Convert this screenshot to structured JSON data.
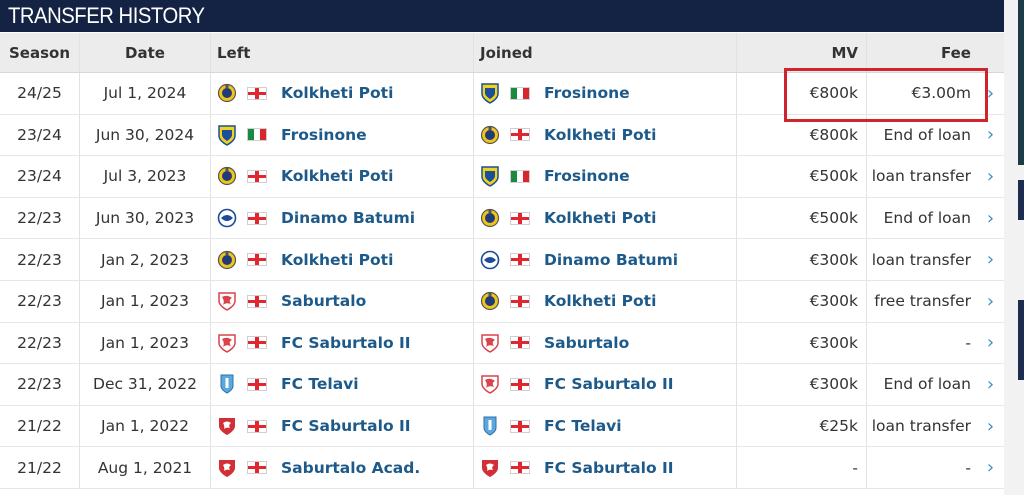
{
  "header": {
    "title": "TRANSFER HISTORY"
  },
  "columns": {
    "season": "Season",
    "date": "Date",
    "left": "Left",
    "joined": "Joined",
    "mv": "MV",
    "fee": "Fee"
  },
  "rows": [
    {
      "season": "24/25",
      "date": "Jul 1, 2024",
      "left": {
        "name": "Kolkheti Poti",
        "icon": "kolkheti-poti-crest-icon",
        "flag": "ge"
      },
      "joined": {
        "name": "Frosinone",
        "icon": "frosinone-crest-icon",
        "flag": "it"
      },
      "mv": "€800k",
      "fee": "€3.00m"
    },
    {
      "season": "23/24",
      "date": "Jun 30, 2024",
      "left": {
        "name": "Frosinone",
        "icon": "frosinone-crest-icon",
        "flag": "it"
      },
      "joined": {
        "name": "Kolkheti Poti",
        "icon": "kolkheti-poti-crest-icon",
        "flag": "ge"
      },
      "mv": "€800k",
      "fee": "End of loan"
    },
    {
      "season": "23/24",
      "date": "Jul 3, 2023",
      "left": {
        "name": "Kolkheti Poti",
        "icon": "kolkheti-poti-crest-icon",
        "flag": "ge"
      },
      "joined": {
        "name": "Frosinone",
        "icon": "frosinone-crest-icon",
        "flag": "it"
      },
      "mv": "€500k",
      "fee": "loan transfer"
    },
    {
      "season": "22/23",
      "date": "Jun 30, 2023",
      "left": {
        "name": "Dinamo Batumi",
        "icon": "dinamo-batumi-crest-icon",
        "flag": "ge"
      },
      "joined": {
        "name": "Kolkheti Poti",
        "icon": "kolkheti-poti-crest-icon",
        "flag": "ge"
      },
      "mv": "€500k",
      "fee": "End of loan"
    },
    {
      "season": "22/23",
      "date": "Jan 2, 2023",
      "left": {
        "name": "Kolkheti Poti",
        "icon": "kolkheti-poti-crest-icon",
        "flag": "ge"
      },
      "joined": {
        "name": "Dinamo Batumi",
        "icon": "dinamo-batumi-crest-icon",
        "flag": "ge"
      },
      "mv": "€300k",
      "fee": "loan transfer"
    },
    {
      "season": "22/23",
      "date": "Jan 1, 2023",
      "left": {
        "name": "Saburtalo",
        "icon": "saburtalo-crest-icon",
        "flag": "ge"
      },
      "joined": {
        "name": "Kolkheti Poti",
        "icon": "kolkheti-poti-crest-icon",
        "flag": "ge"
      },
      "mv": "€300k",
      "fee": "free transfer"
    },
    {
      "season": "22/23",
      "date": "Jan 1, 2023",
      "left": {
        "name": "FC Saburtalo II",
        "icon": "saburtalo-crest-icon",
        "flag": "ge"
      },
      "joined": {
        "name": "Saburtalo",
        "icon": "saburtalo-crest-icon",
        "flag": "ge"
      },
      "mv": "€300k",
      "fee": "-"
    },
    {
      "season": "22/23",
      "date": "Dec 31, 2022",
      "left": {
        "name": "FC Telavi",
        "icon": "fc-telavi-crest-icon",
        "flag": "ge"
      },
      "joined": {
        "name": "FC Saburtalo II",
        "icon": "saburtalo-crest-icon",
        "flag": "ge"
      },
      "mv": "€300k",
      "fee": "End of loan"
    },
    {
      "season": "21/22",
      "date": "Jan 1, 2022",
      "left": {
        "name": "FC Saburtalo II",
        "icon": "saburtalo-red-crest-icon",
        "flag": "ge"
      },
      "joined": {
        "name": "FC Telavi",
        "icon": "fc-telavi-crest-icon",
        "flag": "ge"
      },
      "mv": "€25k",
      "fee": "loan transfer"
    },
    {
      "season": "21/22",
      "date": "Aug 1, 2021",
      "left": {
        "name": "Saburtalo Acad.",
        "icon": "saburtalo-red-crest-icon",
        "flag": "ge"
      },
      "joined": {
        "name": "FC Saburtalo II",
        "icon": "saburtalo-red-crest-icon",
        "flag": "ge"
      },
      "mv": "-",
      "fee": "-"
    }
  ],
  "arrow_glyph": "›",
  "colors": {
    "header_bg": "#142344",
    "club_link": "#1d5a8a",
    "highlight": "#d0242d",
    "arrow": "#3b8fc0"
  }
}
